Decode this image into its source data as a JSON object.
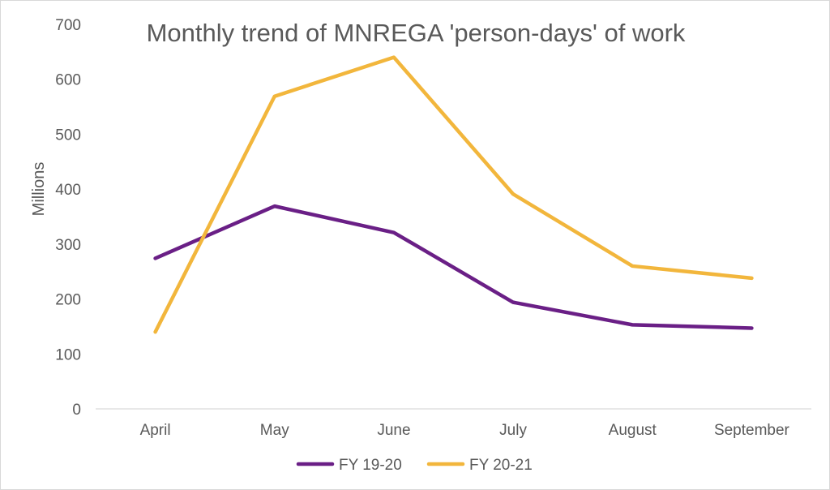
{
  "chart_data": {
    "type": "line",
    "title": "Monthly trend of MNREGA 'person-days' of work",
    "ylabel": "Millions",
    "xlabel": "",
    "categories": [
      "April",
      "May",
      "June",
      "July",
      "August",
      "September"
    ],
    "ylim": [
      0,
      700
    ],
    "yticks": [
      0,
      100,
      200,
      300,
      400,
      500,
      600,
      700
    ],
    "grid": false,
    "legend_position": "bottom",
    "series": [
      {
        "name": "FY 19-20",
        "color": "#6a1f86",
        "values": [
          274,
          369,
          321,
          194,
          153,
          147
        ]
      },
      {
        "name": "FY 20-21",
        "color": "#f2b63c",
        "values": [
          140,
          569,
          640,
          391,
          260,
          238
        ]
      }
    ]
  }
}
